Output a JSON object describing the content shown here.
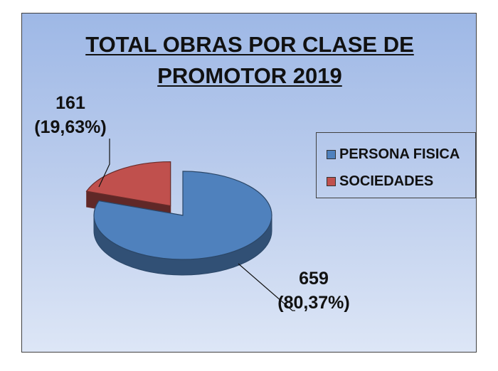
{
  "chart_data": {
    "type": "pie",
    "title_lines": [
      "TOTAL OBRAS POR CLASE DE",
      "PROMOTOR 2019"
    ],
    "categories": [
      "PERSONA FISICA",
      "SOCIEDADES"
    ],
    "values": [
      659,
      161
    ],
    "percent_labels": [
      "(80,37%)",
      "(19,63%)"
    ],
    "value_labels": [
      "659",
      "161"
    ],
    "colors": [
      "#4f81bd",
      "#c0504d"
    ],
    "legend_position": "right",
    "style": "3d-exploded"
  }
}
